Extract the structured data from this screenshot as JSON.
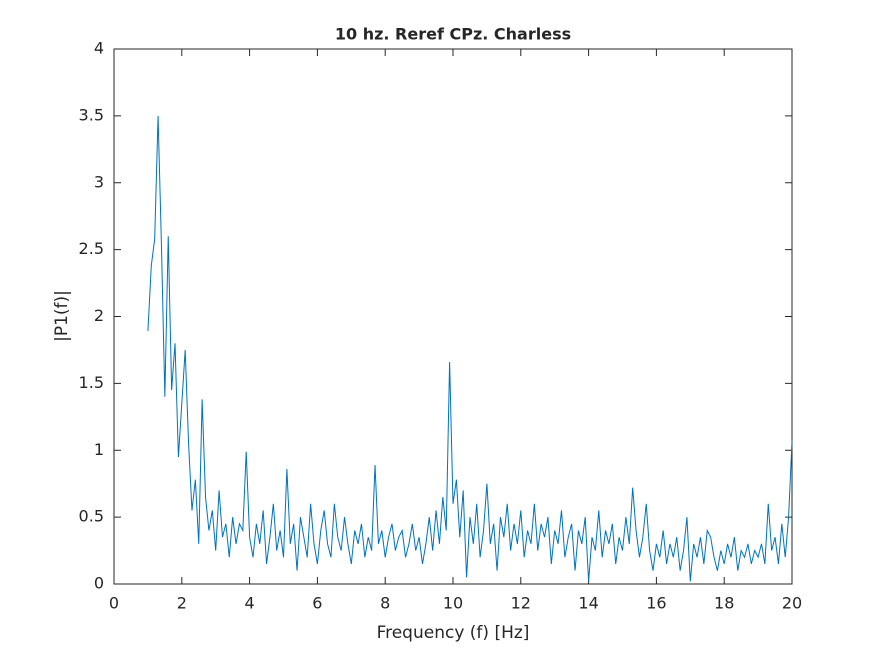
{
  "chart_data": {
    "type": "line",
    "title": "10 hz. Reref CPz. Charless",
    "xlabel": "Frequency (f) [Hz]",
    "ylabel": "|P1(f)|",
    "color": "#0072BD",
    "x": [
      1.0,
      1.1,
      1.2,
      1.3,
      1.4,
      1.5,
      1.6,
      1.7,
      1.8,
      1.9,
      2.0,
      2.1,
      2.2,
      2.3,
      2.4,
      2.5,
      2.6,
      2.7,
      2.8,
      2.9,
      3.0,
      3.1,
      3.2,
      3.3,
      3.4,
      3.5,
      3.6,
      3.7,
      3.8,
      3.9,
      4.0,
      4.1,
      4.2,
      4.3,
      4.4,
      4.5,
      4.6,
      4.7,
      4.8,
      4.9,
      5.0,
      5.1,
      5.2,
      5.3,
      5.4,
      5.5,
      5.6,
      5.7,
      5.8,
      5.9,
      6.0,
      6.1,
      6.2,
      6.3,
      6.4,
      6.5,
      6.6,
      6.7,
      6.8,
      6.9,
      7.0,
      7.1,
      7.2,
      7.3,
      7.4,
      7.5,
      7.6,
      7.7,
      7.8,
      7.9,
      8.0,
      8.1,
      8.2,
      8.3,
      8.4,
      8.5,
      8.6,
      8.7,
      8.8,
      8.9,
      9.0,
      9.1,
      9.2,
      9.3,
      9.4,
      9.5,
      9.6,
      9.7,
      9.8,
      9.9,
      10.0,
      10.1,
      10.2,
      10.3,
      10.4,
      10.5,
      10.6,
      10.7,
      10.8,
      10.9,
      11.0,
      11.1,
      11.2,
      11.3,
      11.4,
      11.5,
      11.6,
      11.7,
      11.8,
      11.9,
      12.0,
      12.1,
      12.2,
      12.3,
      12.4,
      12.5,
      12.6,
      12.7,
      12.8,
      12.9,
      13.0,
      13.1,
      13.2,
      13.3,
      13.4,
      13.5,
      13.6,
      13.7,
      13.8,
      13.9,
      14.0,
      14.1,
      14.2,
      14.3,
      14.4,
      14.5,
      14.6,
      14.7,
      14.8,
      14.9,
      15.0,
      15.1,
      15.2,
      15.3,
      15.4,
      15.5,
      15.6,
      15.7,
      15.8,
      15.9,
      16.0,
      16.1,
      16.2,
      16.3,
      16.4,
      16.5,
      16.6,
      16.7,
      16.8,
      16.9,
      17.0,
      17.1,
      17.2,
      17.3,
      17.4,
      17.5,
      17.6,
      17.7,
      17.8,
      17.9,
      18.0,
      18.1,
      18.2,
      18.3,
      18.4,
      18.5,
      18.6,
      18.7,
      18.8,
      18.9,
      19.0,
      19.1,
      19.2,
      19.3,
      19.4,
      19.5,
      19.6,
      19.7,
      19.8,
      19.9,
      20.0
    ],
    "values": [
      1.89,
      2.38,
      2.58,
      3.5,
      2.53,
      1.4,
      2.6,
      1.45,
      1.8,
      0.95,
      1.35,
      1.75,
      1.05,
      0.55,
      0.78,
      0.3,
      1.38,
      0.65,
      0.4,
      0.55,
      0.25,
      0.7,
      0.35,
      0.45,
      0.2,
      0.5,
      0.3,
      0.45,
      0.4,
      0.99,
      0.35,
      0.2,
      0.45,
      0.3,
      0.55,
      0.15,
      0.35,
      0.6,
      0.25,
      0.4,
      0.2,
      0.86,
      0.3,
      0.45,
      0.1,
      0.5,
      0.35,
      0.2,
      0.6,
      0.3,
      0.15,
      0.4,
      0.55,
      0.3,
      0.2,
      0.6,
      0.35,
      0.25,
      0.5,
      0.3,
      0.15,
      0.4,
      0.3,
      0.45,
      0.2,
      0.35,
      0.25,
      0.89,
      0.3,
      0.4,
      0.2,
      0.35,
      0.45,
      0.25,
      0.35,
      0.4,
      0.2,
      0.3,
      0.45,
      0.25,
      0.35,
      0.15,
      0.3,
      0.5,
      0.25,
      0.55,
      0.3,
      0.65,
      0.4,
      1.66,
      0.6,
      0.78,
      0.35,
      0.7,
      0.05,
      0.5,
      0.3,
      0.6,
      0.2,
      0.4,
      0.75,
      0.3,
      0.45,
      0.1,
      0.5,
      0.35,
      0.6,
      0.25,
      0.45,
      0.3,
      0.55,
      0.2,
      0.4,
      0.3,
      0.6,
      0.25,
      0.45,
      0.35,
      0.5,
      0.15,
      0.4,
      0.3,
      0.55,
      0.2,
      0.35,
      0.45,
      0.1,
      0.4,
      0.3,
      0.5,
      0.02,
      0.35,
      0.25,
      0.55,
      0.2,
      0.4,
      0.3,
      0.45,
      0.15,
      0.35,
      0.25,
      0.5,
      0.3,
      0.72,
      0.4,
      0.2,
      0.35,
      0.6,
      0.25,
      0.1,
      0.3,
      0.2,
      0.4,
      0.15,
      0.3,
      0.2,
      0.35,
      0.1,
      0.25,
      0.5,
      0.02,
      0.3,
      0.2,
      0.35,
      0.15,
      0.4,
      0.35,
      0.2,
      0.1,
      0.25,
      0.15,
      0.3,
      0.2,
      0.35,
      0.1,
      0.25,
      0.2,
      0.3,
      0.15,
      0.25,
      0.2,
      0.3,
      0.15,
      0.6,
      0.25,
      0.35,
      0.15,
      0.45,
      0.2,
      0.5,
      1.07
    ],
    "xlim": [
      0,
      20
    ],
    "xticks": [
      0,
      2,
      4,
      6,
      8,
      10,
      12,
      14,
      16,
      18,
      20
    ],
    "ylim": [
      0,
      4
    ],
    "yticks": [
      0,
      0.5,
      1,
      1.5,
      2,
      2.5,
      3,
      3.5,
      4
    ]
  }
}
